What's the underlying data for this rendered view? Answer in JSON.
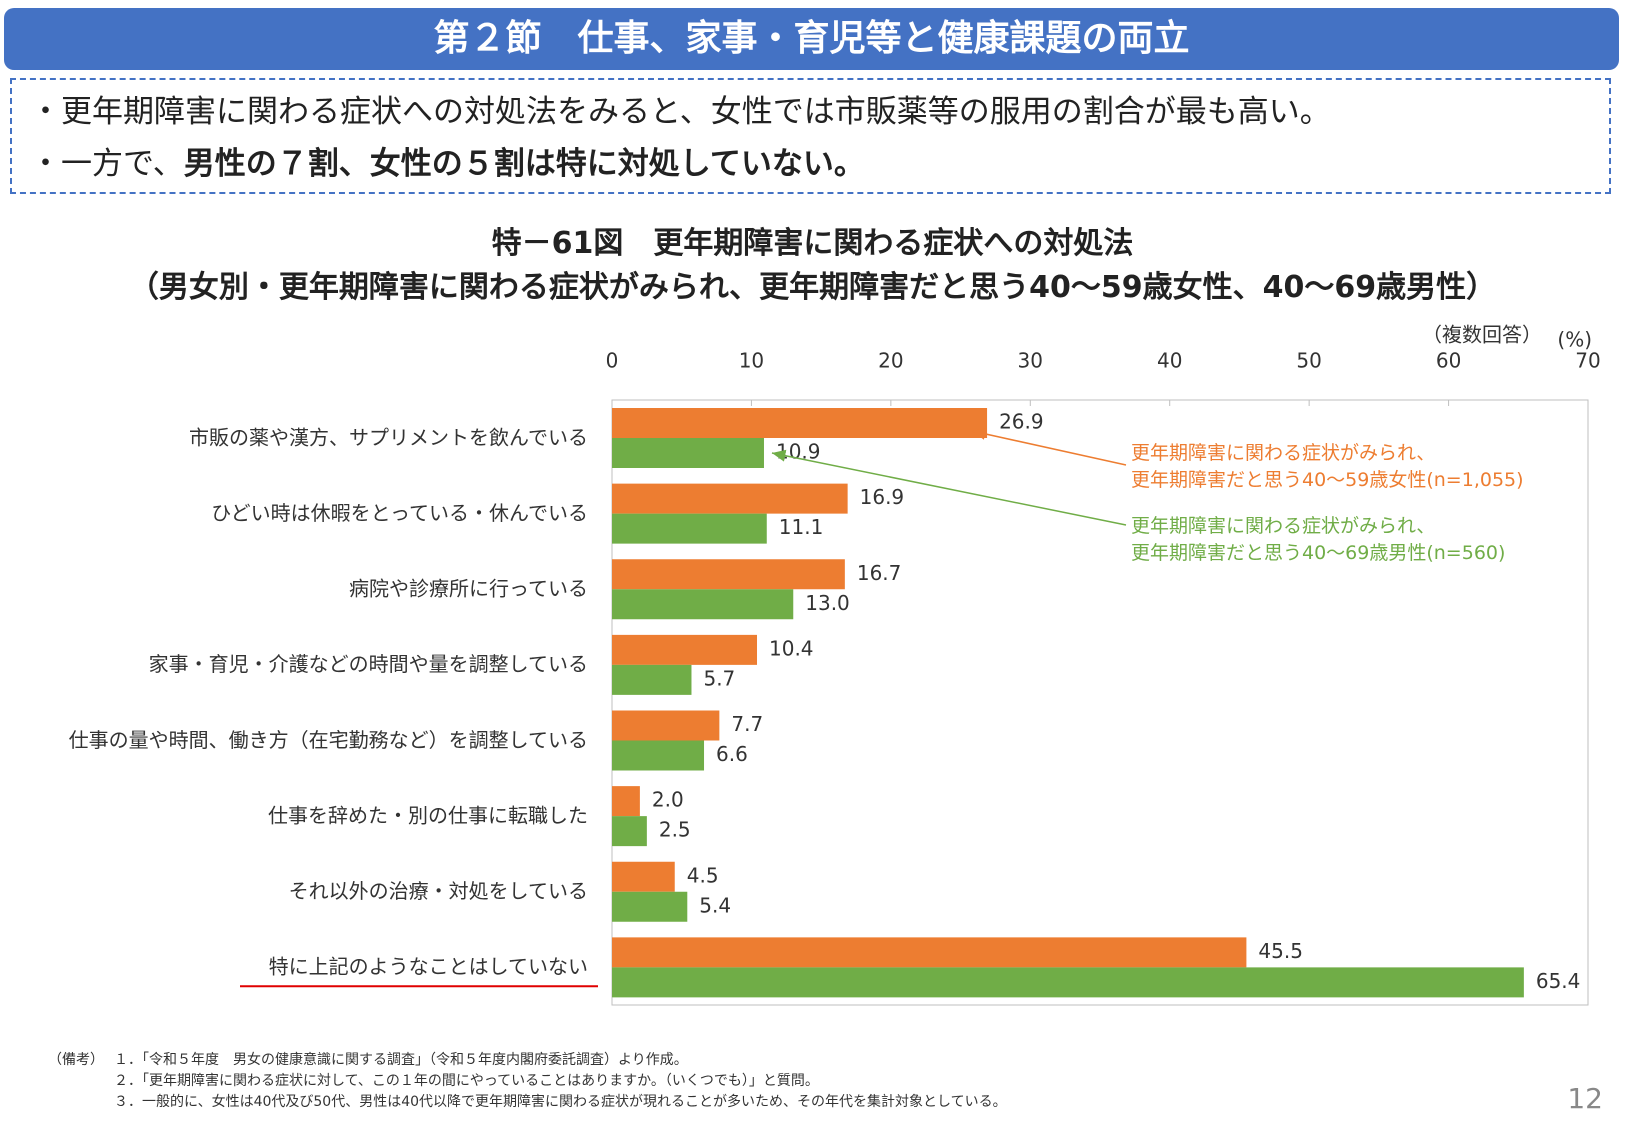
{
  "header": {
    "title": "第２節　仕事、家事・育児等と健康課題の両立"
  },
  "summary": {
    "bullets": [
      {
        "text": "・更年期障害に関わる症状への対処法をみると、女性では市販薬等の服用の割合が最も高い。"
      },
      {
        "text": "・一方で、",
        "bold": "男性の７割、女性の５割は特に対処していない。"
      }
    ]
  },
  "chart_data": {
    "type": "barh",
    "title": "特－61図　更年期障害に関わる症状への対処法",
    "subtitle": "（男女別・更年期障害に関わる症状がみられ、更年期障害だと思う40～59歳女性、40～69歳男性）",
    "note": "（複数回答）",
    "unit": "(%)",
    "categories": [
      "市販の薬や漢方、サプリメントを飲んでいる",
      "ひどい時は休暇をとっている・休んでいる",
      "病院や診療所に行っている",
      "家事・育児・介護などの時間や量を調整している",
      "仕事の量や時間、働き方（在宅勤務など）を調整している",
      "仕事を辞めた・別の仕事に転職した",
      "それ以外の治療・対処をしている",
      "特に上記のようなことはしていない"
    ],
    "series": [
      {
        "name": "更年期障害に関わる症状がみられ、\n更年期障害だと思う40～59歳女性(n=1,055)",
        "color": "#ed7d31",
        "values": [
          26.9,
          16.9,
          16.7,
          10.4,
          7.7,
          2.0,
          4.5,
          45.5
        ],
        "value_labels": [
          "26.9",
          "16.9",
          "16.7",
          "10.4",
          "7.7",
          "2.0",
          "4.5",
          "45.5"
        ]
      },
      {
        "name": "更年期障害に関わる症状がみられ、\n更年期障害だと思う40～69歳男性(n=560)",
        "color": "#70ad47",
        "values": [
          10.9,
          11.1,
          13.0,
          5.7,
          6.6,
          2.5,
          5.4,
          65.4
        ],
        "value_labels": [
          "10.9",
          "11.1",
          "13.0",
          "5.7",
          "6.6",
          "2.5",
          "5.4",
          "65.4"
        ]
      }
    ],
    "xlim": [
      0,
      70
    ],
    "xticks": [
      0,
      10,
      20,
      30,
      40,
      50,
      60,
      70
    ]
  },
  "notes": {
    "label": "（備考）",
    "items": [
      "１．「令和５年度　男女の健康意識に関する調査」（令和５年度内閣府委託調査）より作成。",
      "２．「更年期障害に関わる症状に対して、この１年の間にやっていることはありますか。（いくつでも）」と質問。",
      "３．一般的に、女性は40代及び50代、男性は40代以降で更年期障害に関わる症状が現れることが多いため、その年代を集計対象としている。"
    ]
  },
  "page_number": "12"
}
